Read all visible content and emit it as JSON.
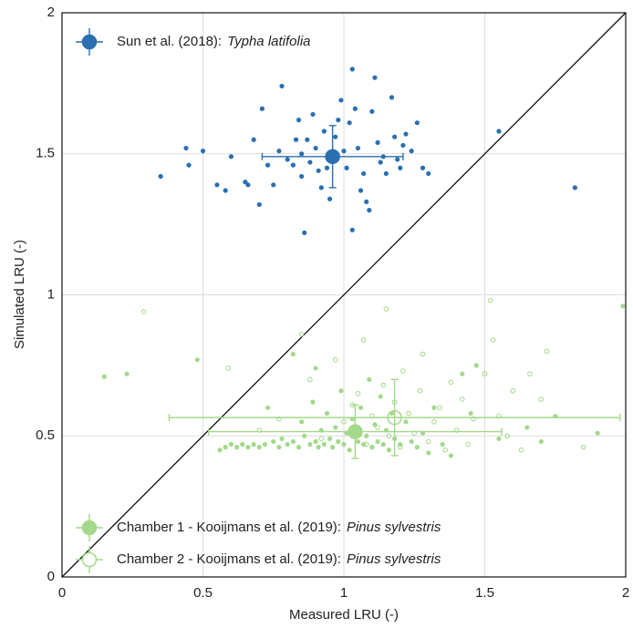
{
  "chart_data": {
    "type": "scatter",
    "xlabel": "Measured LRU (-)",
    "ylabel": "Simulated LRU (-)",
    "xlim": [
      0,
      2
    ],
    "ylim": [
      0,
      2
    ],
    "xticks": [
      0,
      0.5,
      1,
      1.5,
      2
    ],
    "yticks": [
      0,
      0.5,
      1,
      1.5,
      2
    ],
    "grid": true,
    "series": [
      {
        "name": "Sun et al. (2018):",
        "species": "Typha latifolia",
        "color": "#2a6fb0",
        "marker": "filled",
        "x": [
          0.35,
          0.44,
          0.45,
          0.5,
          0.55,
          0.58,
          0.6,
          0.65,
          0.66,
          0.68,
          0.7,
          0.71,
          0.73,
          0.75,
          0.77,
          0.78,
          0.8,
          0.82,
          0.83,
          0.84,
          0.85,
          0.85,
          0.86,
          0.87,
          0.88,
          0.89,
          0.9,
          0.91,
          0.92,
          0.93,
          0.94,
          0.95,
          0.97,
          0.98,
          0.99,
          1.0,
          1.01,
          1.02,
          1.03,
          1.03,
          1.04,
          1.05,
          1.06,
          1.07,
          1.08,
          1.09,
          1.1,
          1.11,
          1.12,
          1.13,
          1.14,
          1.15,
          1.17,
          1.18,
          1.19,
          1.2,
          1.21,
          1.22,
          1.24,
          1.26,
          1.28,
          1.3,
          1.55,
          1.82
        ],
        "y": [
          1.42,
          1.52,
          1.46,
          1.51,
          1.39,
          1.37,
          1.49,
          1.4,
          1.39,
          1.55,
          1.32,
          1.66,
          1.46,
          1.39,
          1.51,
          1.74,
          1.48,
          1.46,
          1.55,
          1.62,
          1.5,
          1.42,
          1.22,
          1.55,
          1.47,
          1.64,
          1.52,
          1.44,
          1.38,
          1.58,
          1.45,
          1.34,
          1.56,
          1.62,
          1.69,
          1.51,
          1.45,
          1.61,
          1.8,
          1.23,
          1.66,
          1.52,
          1.37,
          1.43,
          1.33,
          1.3,
          1.65,
          1.77,
          1.54,
          1.47,
          1.49,
          1.43,
          1.7,
          1.56,
          1.48,
          1.45,
          1.53,
          1.57,
          1.51,
          1.61,
          1.45,
          1.43,
          1.58,
          1.38
        ],
        "mean": {
          "x": 0.96,
          "y": 1.49,
          "xerr": 0.25,
          "yerr": 0.11
        }
      },
      {
        "name": "Chamber 1 - Kooijmans et al. (2019):",
        "species": "Pinus sylvestris",
        "color": "#a3d98a",
        "marker": "filled",
        "x": [
          0.15,
          0.23,
          0.48,
          0.56,
          0.58,
          0.6,
          0.62,
          0.64,
          0.66,
          0.68,
          0.7,
          0.72,
          0.73,
          0.75,
          0.77,
          0.78,
          0.8,
          0.82,
          0.84,
          0.85,
          0.86,
          0.88,
          0.89,
          0.9,
          0.91,
          0.92,
          0.93,
          0.94,
          0.95,
          0.96,
          0.97,
          0.98,
          0.99,
          1.0,
          1.01,
          1.02,
          1.03,
          1.05,
          1.06,
          1.07,
          1.08,
          1.09,
          1.1,
          1.11,
          1.12,
          1.13,
          1.14,
          1.15,
          1.16,
          1.17,
          1.18,
          1.2,
          1.22,
          1.24,
          1.26,
          1.28,
          1.3,
          1.32,
          1.35,
          1.38,
          1.42,
          1.45,
          1.47,
          1.55,
          1.65,
          1.7,
          1.75,
          1.9,
          1.99,
          0.82,
          0.9
        ],
        "y": [
          0.71,
          0.72,
          0.77,
          0.45,
          0.46,
          0.47,
          0.46,
          0.47,
          0.46,
          0.47,
          0.46,
          0.47,
          0.6,
          0.48,
          0.46,
          0.49,
          0.47,
          0.48,
          0.46,
          0.55,
          0.5,
          0.47,
          0.62,
          0.48,
          0.46,
          0.52,
          0.47,
          0.58,
          0.49,
          0.46,
          0.53,
          0.48,
          0.66,
          0.47,
          0.51,
          0.45,
          0.56,
          0.48,
          0.6,
          0.47,
          0.5,
          0.7,
          0.46,
          0.54,
          0.48,
          0.64,
          0.47,
          0.52,
          0.45,
          0.58,
          0.49,
          0.47,
          0.55,
          0.48,
          0.46,
          0.51,
          0.44,
          0.6,
          0.47,
          0.43,
          0.72,
          0.58,
          0.75,
          0.49,
          0.53,
          0.48,
          0.57,
          0.51,
          0.96,
          0.79,
          0.74
        ],
        "mean": {
          "x": 1.04,
          "y": 0.515,
          "xerr": 0.52,
          "yerr": 0.095
        }
      },
      {
        "name": "Chamber 2 - Kooijmans et al. (2019):",
        "species": "Pinus sylvestris",
        "color": "#a3d98a",
        "marker": "open",
        "x": [
          0.29,
          0.59,
          0.7,
          0.77,
          0.85,
          0.88,
          0.92,
          0.97,
          1.0,
          1.03,
          1.05,
          1.07,
          1.08,
          1.1,
          1.12,
          1.14,
          1.15,
          1.16,
          1.18,
          1.2,
          1.21,
          1.23,
          1.25,
          1.27,
          1.28,
          1.3,
          1.32,
          1.34,
          1.36,
          1.38,
          1.4,
          1.42,
          1.44,
          1.46,
          1.5,
          1.52,
          1.55,
          1.58,
          1.6,
          1.63,
          1.66,
          1.7,
          1.72,
          1.85,
          1.53
        ],
        "y": [
          0.94,
          0.74,
          0.52,
          0.56,
          0.86,
          0.7,
          0.49,
          0.77,
          0.55,
          0.61,
          0.65,
          0.84,
          0.47,
          0.57,
          0.53,
          0.68,
          0.95,
          0.5,
          0.62,
          0.46,
          0.73,
          0.58,
          0.51,
          0.66,
          0.79,
          0.48,
          0.55,
          0.6,
          0.45,
          0.69,
          0.52,
          0.63,
          0.47,
          0.56,
          0.72,
          0.98,
          0.57,
          0.5,
          0.66,
          0.45,
          0.72,
          0.63,
          0.8,
          0.46,
          0.84
        ],
        "mean": {
          "x": 1.18,
          "y": 0.565,
          "xerr": 0.8,
          "yerr": 0.135
        }
      }
    ]
  }
}
